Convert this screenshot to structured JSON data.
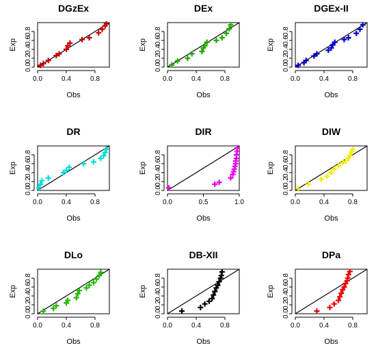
{
  "chart_data": [
    {
      "type": "scatter",
      "title": "DGzEx",
      "xlabel": "Obs",
      "ylabel": "Exp",
      "color": "#cc0000",
      "xlim": [
        0,
        1
      ],
      "ylim": [
        0,
        1
      ],
      "xticks": [
        "0.0",
        "0.4",
        "0.8"
      ],
      "yticks": [
        "0.0",
        "0.2",
        "0.4",
        "0.6",
        "0.8"
      ],
      "reference_line": "y = x",
      "x": [
        0.04,
        0.08,
        0.15,
        0.26,
        0.3,
        0.4,
        0.42,
        0.45,
        0.62,
        0.72,
        0.85,
        0.9,
        0.94,
        0.96
      ],
      "y": [
        0.04,
        0.08,
        0.15,
        0.26,
        0.3,
        0.4,
        0.48,
        0.54,
        0.62,
        0.66,
        0.77,
        0.85,
        0.93,
        0.97
      ]
    },
    {
      "type": "scatter",
      "title": "DEx",
      "xlabel": "Obs",
      "ylabel": "Exp",
      "color": "#22aa00",
      "xlim": [
        0,
        1
      ],
      "ylim": [
        0,
        1
      ],
      "xticks": [
        "0.0",
        "0.4",
        "0.8"
      ],
      "yticks": [
        "0.0",
        "0.2",
        "0.4",
        "0.6",
        "0.8"
      ],
      "reference_line": "y = x",
      "x": [
        0.06,
        0.14,
        0.28,
        0.34,
        0.48,
        0.5,
        0.52,
        0.55,
        0.68,
        0.76,
        0.82,
        0.86,
        0.88
      ],
      "y": [
        0.05,
        0.14,
        0.2,
        0.3,
        0.35,
        0.43,
        0.48,
        0.56,
        0.6,
        0.66,
        0.76,
        0.86,
        0.95
      ]
    },
    {
      "type": "scatter",
      "title": "DGEx-II",
      "xlabel": "Obs",
      "ylabel": "Exp",
      "color": "#0000cc",
      "xlim": [
        0,
        1
      ],
      "ylim": [
        0,
        1
      ],
      "xticks": [
        "0.0",
        "0.4",
        "0.8"
      ],
      "yticks": [
        "0.0",
        "0.2",
        "0.4",
        "0.6",
        "0.8"
      ],
      "reference_line": "y = x",
      "x": [
        0.04,
        0.12,
        0.15,
        0.26,
        0.3,
        0.46,
        0.5,
        0.52,
        0.55,
        0.68,
        0.74,
        0.85,
        0.9,
        0.94
      ],
      "y": [
        0.04,
        0.1,
        0.15,
        0.25,
        0.3,
        0.38,
        0.43,
        0.5,
        0.56,
        0.62,
        0.66,
        0.76,
        0.85,
        0.95
      ]
    },
    {
      "type": "scatter",
      "title": "DR",
      "xlabel": "Obs",
      "ylabel": "Exp",
      "color": "#00dddd",
      "xlim": [
        0,
        1
      ],
      "ylim": [
        0,
        1
      ],
      "xticks": [
        "0.0",
        "0.4",
        "0.8"
      ],
      "yticks": [
        "0.0",
        "0.2",
        "0.4",
        "0.6",
        "0.8"
      ],
      "reference_line": "y = x",
      "x": [
        0.02,
        0.04,
        0.06,
        0.15,
        0.36,
        0.4,
        0.44,
        0.64,
        0.78,
        0.88,
        0.92,
        0.94,
        0.96
      ],
      "y": [
        0.06,
        0.14,
        0.22,
        0.28,
        0.4,
        0.45,
        0.52,
        0.6,
        0.64,
        0.72,
        0.78,
        0.85,
        0.93
      ]
    },
    {
      "type": "scatter",
      "title": "DIR",
      "xlabel": "Obs",
      "ylabel": "Exp",
      "color": "#ee00ee",
      "xlim": [
        0,
        1
      ],
      "ylim": [
        0,
        1
      ],
      "xticks": [
        "0.0",
        "0.5",
        "1.0"
      ],
      "yticks": [
        "0.0",
        "0.2",
        "0.4",
        "0.6",
        "0.8"
      ],
      "reference_line": "y = x",
      "x": [
        0.02,
        0.66,
        0.72,
        0.88,
        0.91,
        0.92,
        0.93,
        0.94,
        0.95,
        0.95,
        0.96,
        0.96,
        0.97,
        0.97
      ],
      "y": [
        0.06,
        0.14,
        0.18,
        0.28,
        0.36,
        0.42,
        0.48,
        0.54,
        0.6,
        0.66,
        0.72,
        0.8,
        0.88,
        0.95
      ]
    },
    {
      "type": "scatter",
      "title": "DIW",
      "xlabel": "Obs",
      "ylabel": "Exp",
      "color": "#eeee00",
      "xlim": [
        0,
        1
      ],
      "ylim": [
        0,
        1
      ],
      "xticks": [
        "0.0",
        "0.4",
        "0.8"
      ],
      "yticks": [
        "0.0",
        "0.2",
        "0.4",
        "0.6",
        "0.8"
      ],
      "reference_line": "y = x",
      "x": [
        0.04,
        0.18,
        0.36,
        0.44,
        0.5,
        0.54,
        0.6,
        0.66,
        0.7,
        0.74,
        0.76,
        0.78,
        0.8
      ],
      "y": [
        0.04,
        0.14,
        0.25,
        0.32,
        0.4,
        0.48,
        0.55,
        0.62,
        0.66,
        0.72,
        0.78,
        0.86,
        0.92
      ]
    },
    {
      "type": "scatter",
      "title": "DLo",
      "xlabel": "Obs",
      "ylabel": "Exp",
      "color": "#22bb00",
      "xlim": [
        0,
        1
      ],
      "ylim": [
        0,
        1
      ],
      "xticks": [
        "0.0",
        "0.4",
        "0.8"
      ],
      "yticks": [
        "0.0",
        "0.2",
        "0.4",
        "0.6",
        "0.8"
      ],
      "reference_line": "y = x",
      "x": [
        0.08,
        0.22,
        0.26,
        0.4,
        0.42,
        0.54,
        0.56,
        0.58,
        0.68,
        0.72,
        0.78,
        0.82,
        0.86,
        0.88
      ],
      "y": [
        0.06,
        0.12,
        0.18,
        0.24,
        0.3,
        0.36,
        0.45,
        0.52,
        0.58,
        0.64,
        0.7,
        0.78,
        0.86,
        0.93
      ]
    },
    {
      "type": "scatter",
      "title": "DB-XII",
      "xlabel": "Obs",
      "ylabel": "Exp",
      "color": "#000000",
      "xlim": [
        0,
        1
      ],
      "ylim": [
        0,
        1
      ],
      "xticks": [
        "0.0",
        "0.4",
        "0.8"
      ],
      "yticks": [
        "0.0",
        "0.2",
        "0.4",
        "0.6",
        "0.8"
      ],
      "reference_line": "y = x",
      "x": [
        0.2,
        0.46,
        0.52,
        0.58,
        0.62,
        0.64,
        0.66,
        0.68,
        0.7,
        0.72,
        0.74,
        0.75,
        0.76
      ],
      "y": [
        0.06,
        0.14,
        0.22,
        0.28,
        0.34,
        0.42,
        0.5,
        0.58,
        0.64,
        0.72,
        0.8,
        0.86,
        0.94
      ]
    },
    {
      "type": "scatter",
      "title": "DPa",
      "xlabel": "Obs",
      "ylabel": "Exp",
      "color": "#ee0000",
      "xlim": [
        0,
        1
      ],
      "ylim": [
        0,
        1
      ],
      "xticks": [
        "0.0",
        "0.4",
        "0.8"
      ],
      "yticks": [
        "0.0",
        "0.2",
        "0.4",
        "0.6",
        "0.8"
      ],
      "reference_line": "y = x",
      "x": [
        0.3,
        0.48,
        0.54,
        0.6,
        0.62,
        0.64,
        0.66,
        0.68,
        0.7,
        0.72,
        0.73,
        0.74,
        0.76
      ],
      "y": [
        0.06,
        0.14,
        0.22,
        0.3,
        0.38,
        0.46,
        0.54,
        0.6,
        0.68,
        0.74,
        0.8,
        0.88,
        0.95
      ]
    }
  ]
}
